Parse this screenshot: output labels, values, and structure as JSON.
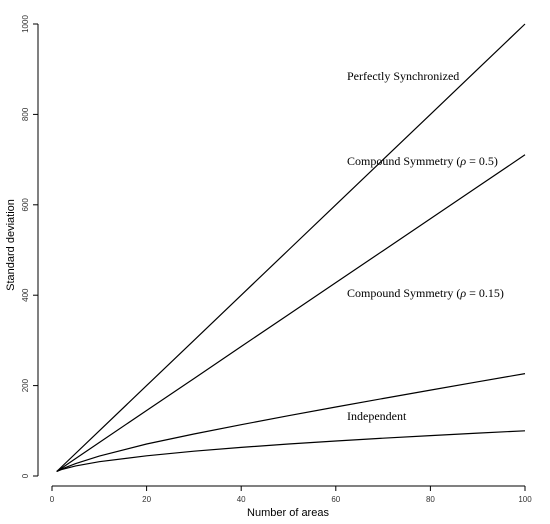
{
  "chart_data": {
    "type": "line",
    "title": "",
    "xlabel": "Number of areas",
    "ylabel": "Standard deviation",
    "xlim": [
      1,
      100
    ],
    "ylim": [
      10,
      1000
    ],
    "x_ticks": [
      0,
      20,
      40,
      60,
      80,
      100
    ],
    "y_ticks": [
      0,
      200,
      400,
      600,
      800,
      1000
    ],
    "grid": false,
    "series": [
      {
        "name": "Perfectly Synchronized",
        "label_parts": [
          "Perfectly Synchronized"
        ],
        "x": [
          1,
          10,
          20,
          30,
          40,
          50,
          60,
          70,
          80,
          90,
          100
        ],
        "values": [
          10,
          100,
          200,
          300,
          400,
          500,
          600,
          700,
          800,
          900,
          1000
        ]
      },
      {
        "name": "Compound Symmetry (ρ = 0.5)",
        "label_parts": [
          "Compound Symmetry (",
          "ρ",
          " = 0.5)"
        ],
        "x": [
          1,
          2,
          5,
          10,
          20,
          30,
          40,
          50,
          60,
          70,
          80,
          90,
          100
        ],
        "values": [
          10,
          17.3,
          38.7,
          74.2,
          144.9,
          215.4,
          286.4,
          357.1,
          427.8,
          498.5,
          569.2,
          639.9,
          710.6
        ]
      },
      {
        "name": "Compound Symmetry (ρ = 0.15)",
        "label_parts": [
          "Compound Symmetry (",
          "ρ",
          " = 0.15)"
        ],
        "x": [
          1,
          2,
          5,
          10,
          20,
          30,
          40,
          50,
          60,
          70,
          80,
          90,
          100
        ],
        "values": [
          10,
          15.2,
          27.4,
          44.0,
          70.7,
          92.9,
          113.6,
          133.4,
          152.6,
          171.5,
          190.0,
          208.3,
          226.5
        ]
      },
      {
        "name": "Independent",
        "label_parts": [
          "Independent"
        ],
        "x": [
          1,
          2,
          5,
          10,
          20,
          30,
          40,
          50,
          60,
          70,
          80,
          90,
          100
        ],
        "values": [
          10,
          14.1,
          22.4,
          31.6,
          44.7,
          54.8,
          63.2,
          70.7,
          77.5,
          83.7,
          89.4,
          94.9,
          100
        ]
      }
    ]
  }
}
